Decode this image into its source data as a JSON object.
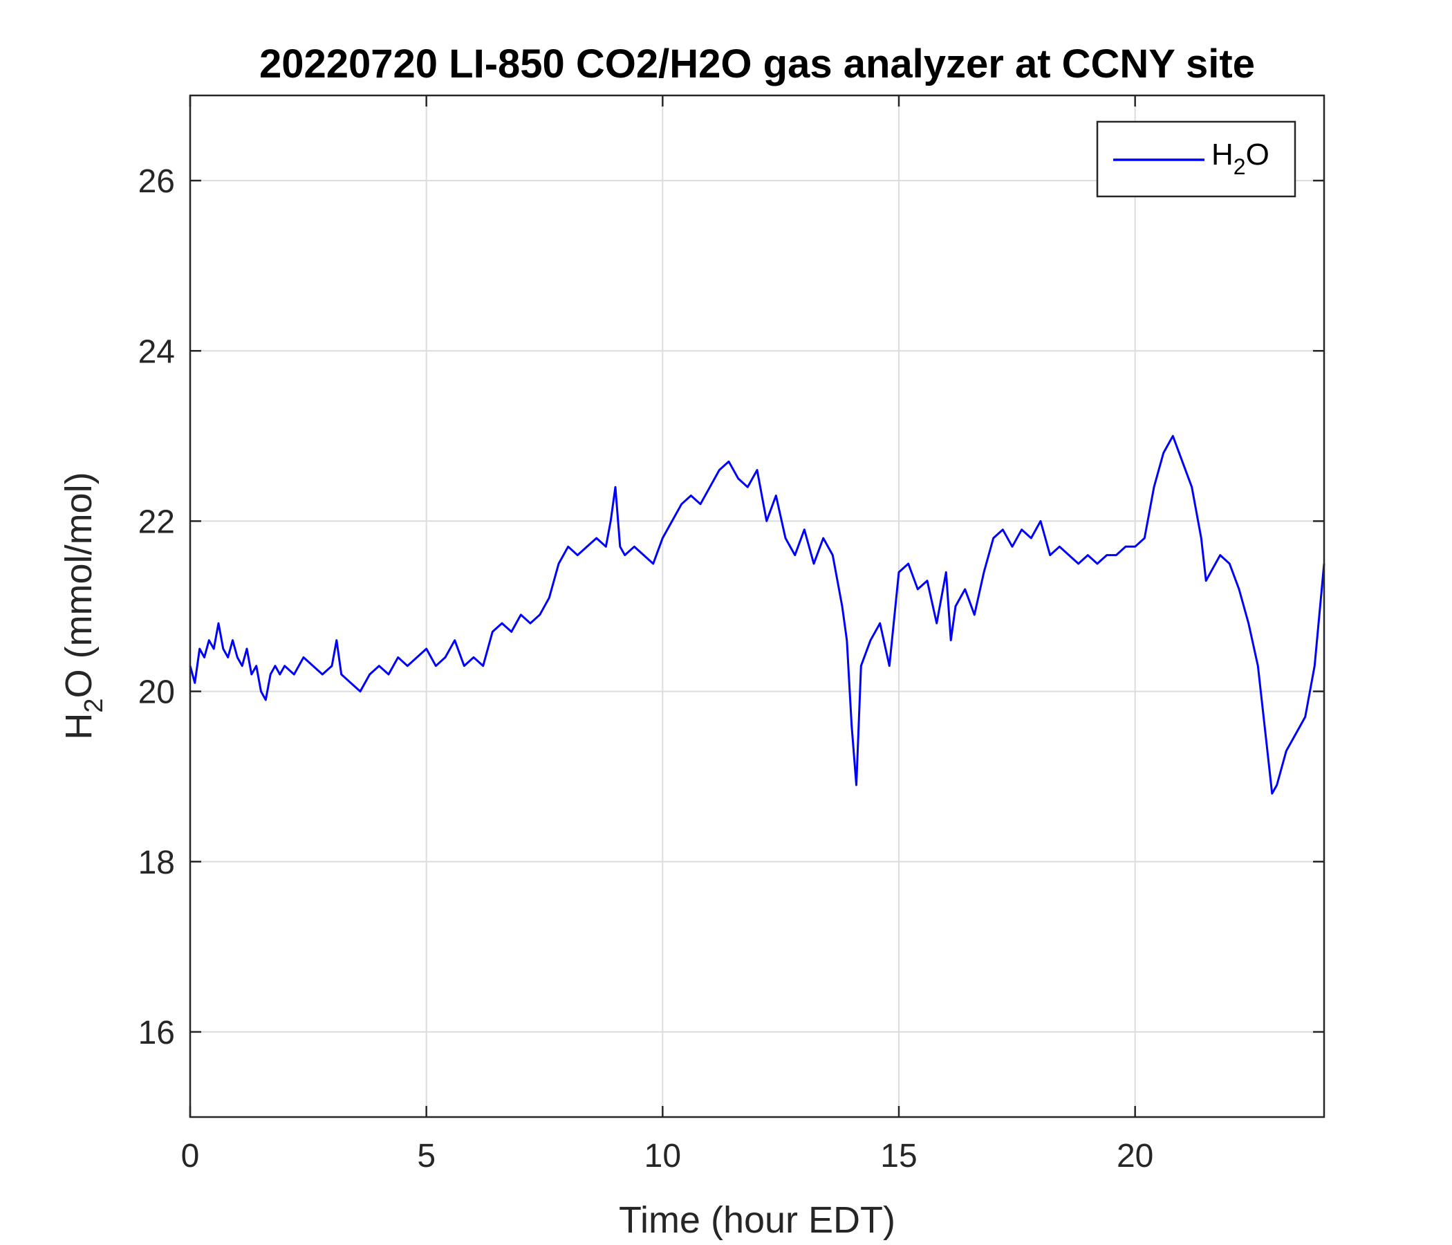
{
  "chart_data": {
    "type": "line",
    "title": "20220720 LI-850 CO2/H2O gas analyzer at CCNY site",
    "xlabel": "Time (hour EDT)",
    "ylabel": {
      "base": "H",
      "sub": "2",
      "rest": "O (mmol/mol)"
    },
    "xlim": [
      0,
      24
    ],
    "ylim": [
      15,
      27
    ],
    "xticks": [
      0,
      5,
      10,
      15,
      20
    ],
    "yticks": [
      16,
      18,
      20,
      22,
      24,
      26
    ],
    "grid": true,
    "legend": {
      "position": "top-right",
      "entries": [
        {
          "base": "H",
          "sub": "2",
          "rest": "O"
        }
      ]
    },
    "series": [
      {
        "color": "#0000ff",
        "x": [
          0.0,
          0.1,
          0.2,
          0.3,
          0.4,
          0.5,
          0.6,
          0.7,
          0.8,
          0.9,
          1.0,
          1.1,
          1.2,
          1.3,
          1.4,
          1.5,
          1.6,
          1.7,
          1.8,
          1.9,
          2.0,
          2.2,
          2.4,
          2.6,
          2.8,
          3.0,
          3.1,
          3.2,
          3.4,
          3.6,
          3.8,
          4.0,
          4.2,
          4.4,
          4.6,
          4.8,
          5.0,
          5.2,
          5.4,
          5.6,
          5.8,
          6.0,
          6.2,
          6.4,
          6.6,
          6.8,
          7.0,
          7.2,
          7.4,
          7.6,
          7.8,
          8.0,
          8.2,
          8.4,
          8.6,
          8.8,
          8.9,
          9.0,
          9.1,
          9.2,
          9.4,
          9.6,
          9.8,
          10.0,
          10.2,
          10.4,
          10.6,
          10.8,
          11.0,
          11.2,
          11.4,
          11.6,
          11.8,
          12.0,
          12.2,
          12.4,
          12.6,
          12.8,
          13.0,
          13.2,
          13.4,
          13.6,
          13.8,
          13.9,
          14.0,
          14.1,
          14.2,
          14.4,
          14.6,
          14.8,
          15.0,
          15.2,
          15.4,
          15.6,
          15.8,
          16.0,
          16.1,
          16.2,
          16.4,
          16.6,
          16.8,
          17.0,
          17.2,
          17.4,
          17.6,
          17.8,
          18.0,
          18.2,
          18.4,
          18.6,
          18.8,
          19.0,
          19.2,
          19.4,
          19.6,
          19.8,
          20.0,
          20.2,
          20.4,
          20.6,
          20.8,
          21.0,
          21.2,
          21.4,
          21.5,
          21.6,
          21.8,
          22.0,
          22.2,
          22.4,
          22.6,
          22.8,
          22.9,
          23.0,
          23.2,
          23.4,
          23.6,
          23.8,
          24.0
        ],
        "y": [
          20.3,
          20.1,
          20.5,
          20.4,
          20.6,
          20.5,
          20.8,
          20.5,
          20.4,
          20.6,
          20.4,
          20.3,
          20.5,
          20.2,
          20.3,
          20.0,
          19.9,
          20.2,
          20.3,
          20.2,
          20.3,
          20.2,
          20.4,
          20.3,
          20.2,
          20.3,
          20.6,
          20.2,
          20.1,
          20.0,
          20.2,
          20.3,
          20.2,
          20.4,
          20.3,
          20.4,
          20.5,
          20.3,
          20.4,
          20.6,
          20.3,
          20.4,
          20.3,
          20.7,
          20.8,
          20.7,
          20.9,
          20.8,
          20.9,
          21.1,
          21.5,
          21.7,
          21.6,
          21.7,
          21.8,
          21.7,
          22.0,
          22.4,
          21.7,
          21.6,
          21.7,
          21.6,
          21.5,
          21.8,
          22.0,
          22.2,
          22.3,
          22.2,
          22.4,
          22.6,
          22.7,
          22.5,
          22.4,
          22.6,
          22.0,
          22.3,
          21.8,
          21.6,
          21.9,
          21.5,
          21.8,
          21.6,
          21.0,
          20.6,
          19.6,
          18.9,
          20.3,
          20.6,
          20.8,
          20.3,
          21.4,
          21.5,
          21.2,
          21.3,
          20.8,
          21.4,
          20.6,
          21.0,
          21.2,
          20.9,
          21.4,
          21.8,
          21.9,
          21.7,
          21.9,
          21.8,
          22.0,
          21.6,
          21.7,
          21.6,
          21.5,
          21.6,
          21.5,
          21.6,
          21.6,
          21.7,
          21.7,
          21.8,
          22.4,
          22.8,
          23.0,
          22.7,
          22.4,
          21.8,
          21.3,
          21.4,
          21.6,
          21.5,
          21.2,
          20.8,
          20.3,
          19.3,
          18.8,
          18.9,
          19.3,
          19.5,
          19.7,
          20.3,
          21.5
        ]
      }
    ]
  }
}
